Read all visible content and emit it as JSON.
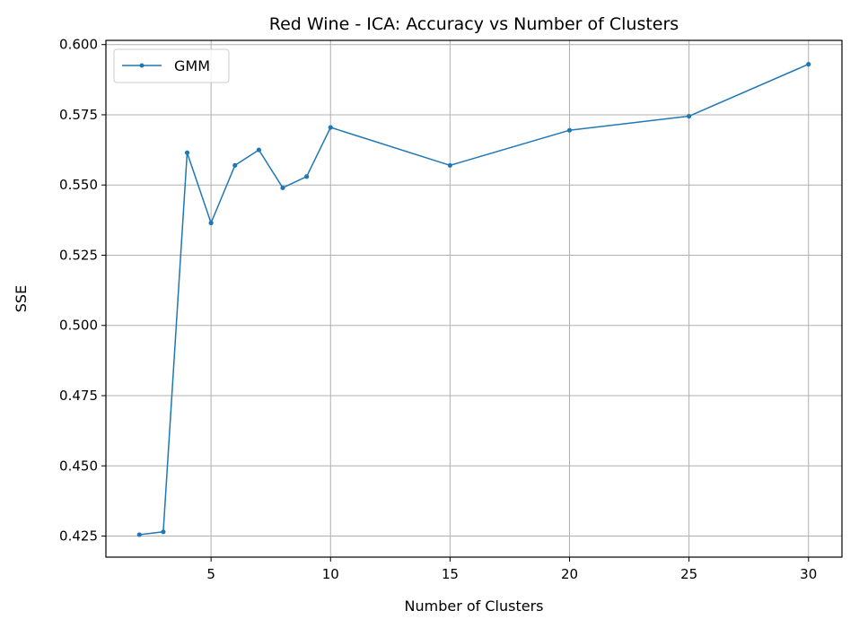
{
  "chart_data": {
    "type": "line",
    "title": "Red Wine - ICA: Accuracy vs Number of Clusters",
    "xlabel": "Number of Clusters",
    "ylabel": "SSE",
    "xlim": [
      0.6,
      31.4
    ],
    "ylim": [
      0.4175,
      0.6015
    ],
    "xticks": [
      5,
      10,
      15,
      20,
      25,
      30
    ],
    "xtick_labels": [
      "5",
      "10",
      "15",
      "20",
      "25",
      "30"
    ],
    "yticks": [
      0.425,
      0.45,
      0.475,
      0.5,
      0.525,
      0.55,
      0.575,
      0.6
    ],
    "ytick_labels": [
      "0.425",
      "0.450",
      "0.475",
      "0.500",
      "0.525",
      "0.550",
      "0.575",
      "0.600"
    ],
    "grid": true,
    "legend_position": "top-left",
    "series": [
      {
        "name": "GMM",
        "color": "#1f77b4",
        "marker": "dot",
        "x": [
          2,
          3,
          4,
          5,
          6,
          7,
          8,
          9,
          10,
          15,
          20,
          25,
          30
        ],
        "y": [
          0.4255,
          0.4265,
          0.5615,
          0.5365,
          0.557,
          0.5625,
          0.549,
          0.553,
          0.5705,
          0.557,
          0.5695,
          0.5745,
          0.593
        ]
      }
    ]
  }
}
